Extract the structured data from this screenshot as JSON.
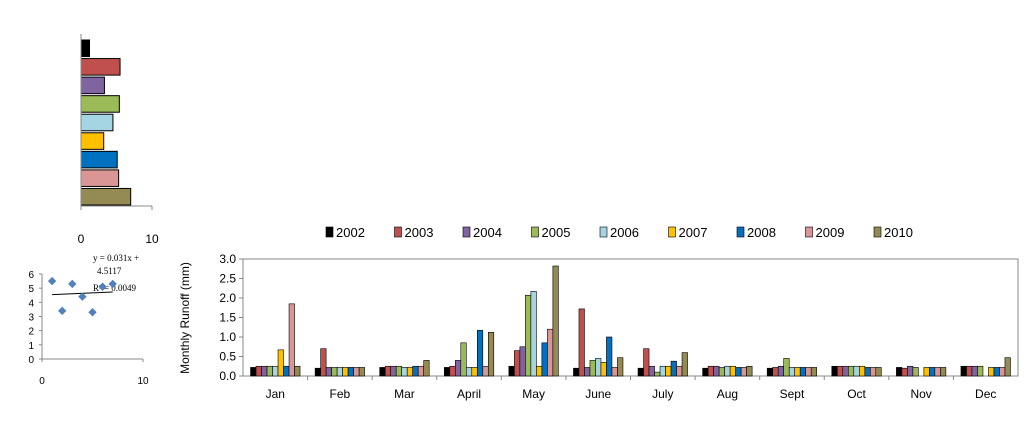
{
  "colors": {
    "2002": "#000000",
    "2003": "#c0504d",
    "2004": "#8064a2",
    "2005": "#9bbb59",
    "2006": "#a5d5e2",
    "2007": "#ffc000",
    "2008": "#0070c0",
    "2009": "#d99694",
    "2010": "#948a54",
    "scatter_marker": "#4f81bd"
  },
  "chart_data": [
    {
      "type": "bar",
      "orientation": "horizontal",
      "categories": [
        "2002",
        "2003",
        "2004",
        "2005",
        "2006",
        "2007",
        "2008",
        "2009",
        "2010"
      ],
      "values": [
        1.2,
        5.5,
        3.3,
        5.4,
        4.5,
        3.2,
        5.1,
        5.3,
        7.0
      ],
      "xlim": [
        0,
        10
      ],
      "xticks": [
        "0",
        "10"
      ],
      "legend": "none"
    },
    {
      "type": "scatter",
      "points": [
        {
          "x": 1,
          "y": 5.5
        },
        {
          "x": 2,
          "y": 3.4
        },
        {
          "x": 3,
          "y": 5.3
        },
        {
          "x": 4,
          "y": 4.4
        },
        {
          "x": 5,
          "y": 3.3
        },
        {
          "x": 6,
          "y": 5.1
        },
        {
          "x": 7,
          "y": 5.3
        }
      ],
      "trendline": {
        "slope": 0.031,
        "intercept": 4.5117
      },
      "equation": "y = 0.031x + 4.5117",
      "r2": "R² = 0.0049",
      "xlim": [
        0,
        10
      ],
      "ylim": [
        0,
        6
      ],
      "xticks": [
        "0",
        "10"
      ],
      "yticks": [
        "0",
        "1",
        "2",
        "3",
        "4",
        "5",
        "6"
      ]
    },
    {
      "type": "bar",
      "categories": [
        "Jan",
        "Feb",
        "Mar",
        "April",
        "May",
        "June",
        "July",
        "Aug",
        "Sept",
        "Oct",
        "Nov",
        "Dec"
      ],
      "ylabel": "Monthly  Runoff (mm)",
      "ylim": [
        0,
        3
      ],
      "yticks": [
        "0.0",
        "0.5",
        "1.0",
        "1.5",
        "2.0",
        "2.5",
        "3.0"
      ],
      "legend": "top",
      "series": [
        {
          "name": "2002",
          "values": [
            0.22,
            0.2,
            0.22,
            0.22,
            0.25,
            0.2,
            0.2,
            0.2,
            0.2,
            0.25,
            0.22,
            0.25
          ]
        },
        {
          "name": "2003",
          "values": [
            0.25,
            0.7,
            0.25,
            0.25,
            0.65,
            1.72,
            0.7,
            0.25,
            0.22,
            0.25,
            0.2,
            0.25
          ]
        },
        {
          "name": "2004",
          "values": [
            0.25,
            0.22,
            0.25,
            0.4,
            0.75,
            0.22,
            0.25,
            0.25,
            0.25,
            0.25,
            0.25,
            0.25
          ]
        },
        {
          "name": "2005",
          "values": [
            0.25,
            0.22,
            0.25,
            0.85,
            2.07,
            0.4,
            0.1,
            0.22,
            0.45,
            0.25,
            0.22,
            0.25
          ]
        },
        {
          "name": "2006",
          "values": [
            0.25,
            0.22,
            0.22,
            0.22,
            2.17,
            0.45,
            0.25,
            0.25,
            0.22,
            0.25,
            0.0,
            0.0
          ]
        },
        {
          "name": "2007",
          "values": [
            0.67,
            0.22,
            0.22,
            0.22,
            0.25,
            0.35,
            0.25,
            0.25,
            0.22,
            0.25,
            0.22,
            0.22
          ]
        },
        {
          "name": "2008",
          "values": [
            0.25,
            0.22,
            0.25,
            1.17,
            0.85,
            1.0,
            0.38,
            0.22,
            0.22,
            0.22,
            0.22,
            0.22
          ]
        },
        {
          "name": "2009",
          "values": [
            1.85,
            0.22,
            0.25,
            0.25,
            1.2,
            0.22,
            0.25,
            0.22,
            0.22,
            0.22,
            0.22,
            0.22
          ]
        },
        {
          "name": "2010",
          "values": [
            0.25,
            0.22,
            0.4,
            1.12,
            2.82,
            0.47,
            0.6,
            0.25,
            0.22,
            0.22,
            0.22,
            0.47
          ]
        }
      ]
    }
  ]
}
